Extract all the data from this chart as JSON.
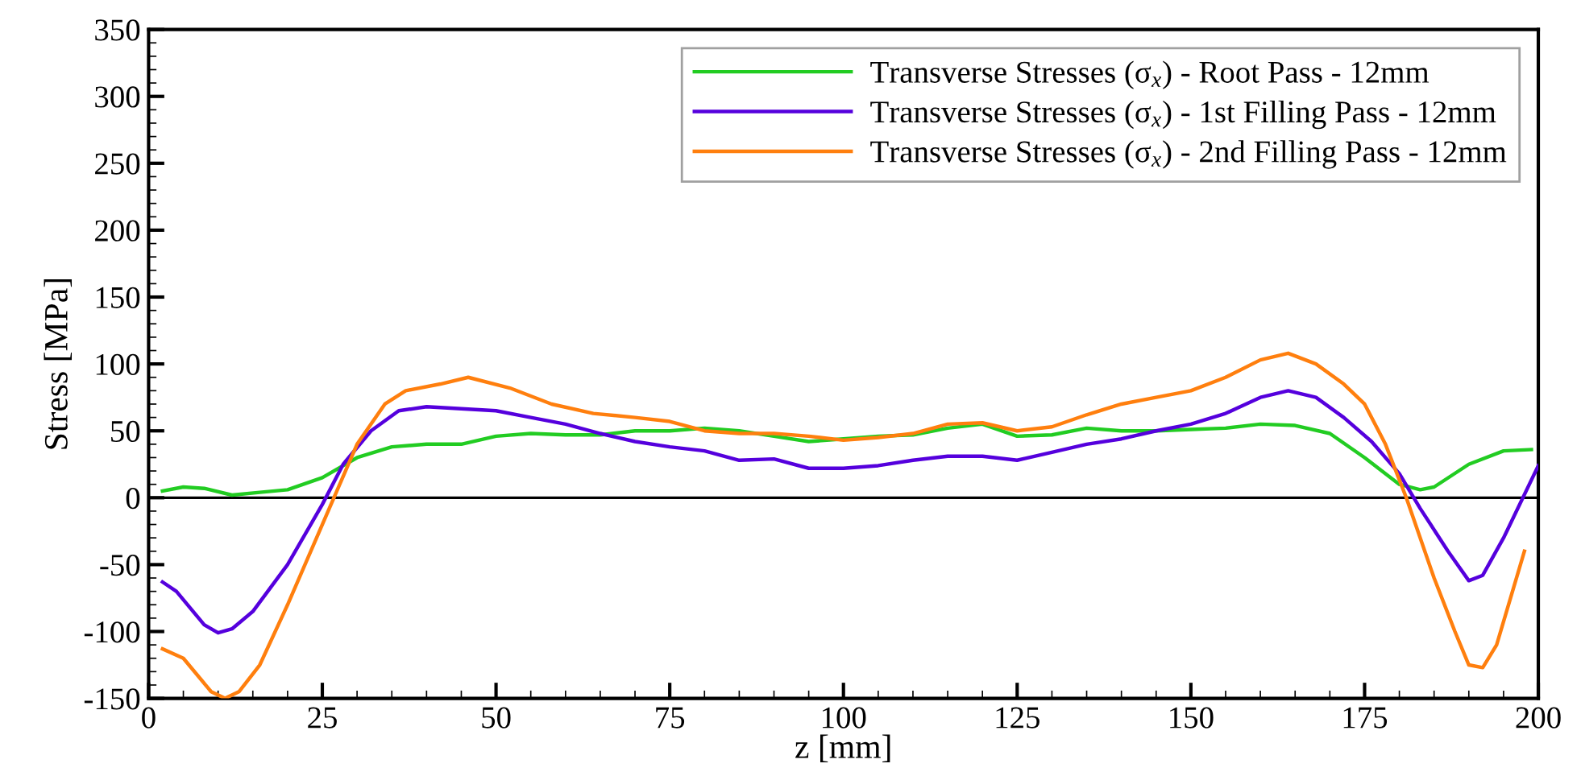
{
  "chart_data": {
    "type": "line",
    "xlabel": "z [mm]",
    "ylabel": "Stress [MPa]",
    "xlim": [
      0,
      200
    ],
    "xticks": [
      0,
      25,
      50,
      75,
      100,
      125,
      150,
      175,
      200
    ],
    "ylim": [
      -150,
      350
    ],
    "yticks": [
      -150,
      -100,
      -50,
      0,
      50,
      100,
      150,
      200,
      250,
      300,
      350
    ],
    "grid": false,
    "legend": "top right",
    "marker": "none",
    "line_style": "solid",
    "ref_lines": [
      {
        "axis": "y",
        "value": 0,
        "label": null,
        "color": "#000000"
      }
    ],
    "series": [
      {
        "name": "Transverse Stresses (σ$_{x}$) - Root Pass - 12mm",
        "color": "#22cc22",
        "x": [
          2,
          5,
          8,
          12,
          16,
          20,
          25,
          30,
          35,
          40,
          45,
          50,
          55,
          60,
          65,
          70,
          75,
          80,
          85,
          90,
          95,
          100,
          105,
          110,
          115,
          120,
          125,
          130,
          135,
          140,
          145,
          150,
          155,
          160,
          165,
          170,
          175,
          180,
          183,
          185,
          190,
          195,
          199
        ],
        "values": [
          5,
          8,
          7,
          2,
          4,
          6,
          15,
          30,
          38,
          40,
          40,
          46,
          48,
          47,
          47,
          50,
          50,
          52,
          50,
          46,
          42,
          44,
          46,
          47,
          52,
          55,
          46,
          47,
          52,
          50,
          50,
          51,
          52,
          55,
          54,
          48,
          30,
          10,
          6,
          8,
          25,
          35,
          36
        ]
      },
      {
        "name": "Transverse Stresses (σ$_{x}$) - 1st Filling Pass - 12mm",
        "color": "#5500dd",
        "x": [
          2,
          4,
          8,
          10,
          12,
          15,
          20,
          25,
          28,
          32,
          36,
          40,
          50,
          55,
          60,
          65,
          70,
          75,
          80,
          85,
          90,
          95,
          100,
          105,
          110,
          115,
          120,
          125,
          130,
          135,
          140,
          145,
          150,
          155,
          160,
          164,
          168,
          172,
          176,
          180,
          183,
          187,
          190,
          192,
          195,
          200
        ],
        "values": [
          -63,
          -70,
          -95,
          -101,
          -98,
          -85,
          -50,
          -5,
          25,
          50,
          65,
          68,
          65,
          60,
          55,
          48,
          42,
          38,
          35,
          28,
          29,
          22,
          22,
          24,
          28,
          31,
          31,
          28,
          34,
          40,
          44,
          50,
          55,
          63,
          75,
          80,
          75,
          60,
          42,
          18,
          -8,
          -40,
          -62,
          -58,
          -30,
          24
        ]
      },
      {
        "name": "Transverse Stresses (σ$_{x}$) - 2nd Filling Pass - 12mm",
        "color": "#ff7f0e",
        "x": [
          2,
          5,
          9,
          11,
          13,
          16,
          20,
          25,
          30,
          34,
          37,
          42,
          46,
          52,
          58,
          64,
          70,
          75,
          80,
          85,
          90,
          95,
          100,
          105,
          110,
          115,
          120,
          125,
          130,
          135,
          140,
          145,
          150,
          155,
          160,
          164,
          168,
          172,
          175,
          178,
          181,
          185,
          188,
          190,
          192,
          194,
          198
        ],
        "values": [
          -113,
          -120,
          -145,
          -150,
          -145,
          -125,
          -80,
          -20,
          40,
          70,
          80,
          85,
          90,
          82,
          70,
          63,
          60,
          57,
          50,
          48,
          48,
          46,
          43,
          45,
          48,
          55,
          56,
          50,
          53,
          62,
          70,
          75,
          80,
          90,
          103,
          108,
          100,
          85,
          70,
          40,
          0,
          -60,
          -100,
          -125,
          -127,
          -110,
          -40
        ]
      }
    ]
  }
}
